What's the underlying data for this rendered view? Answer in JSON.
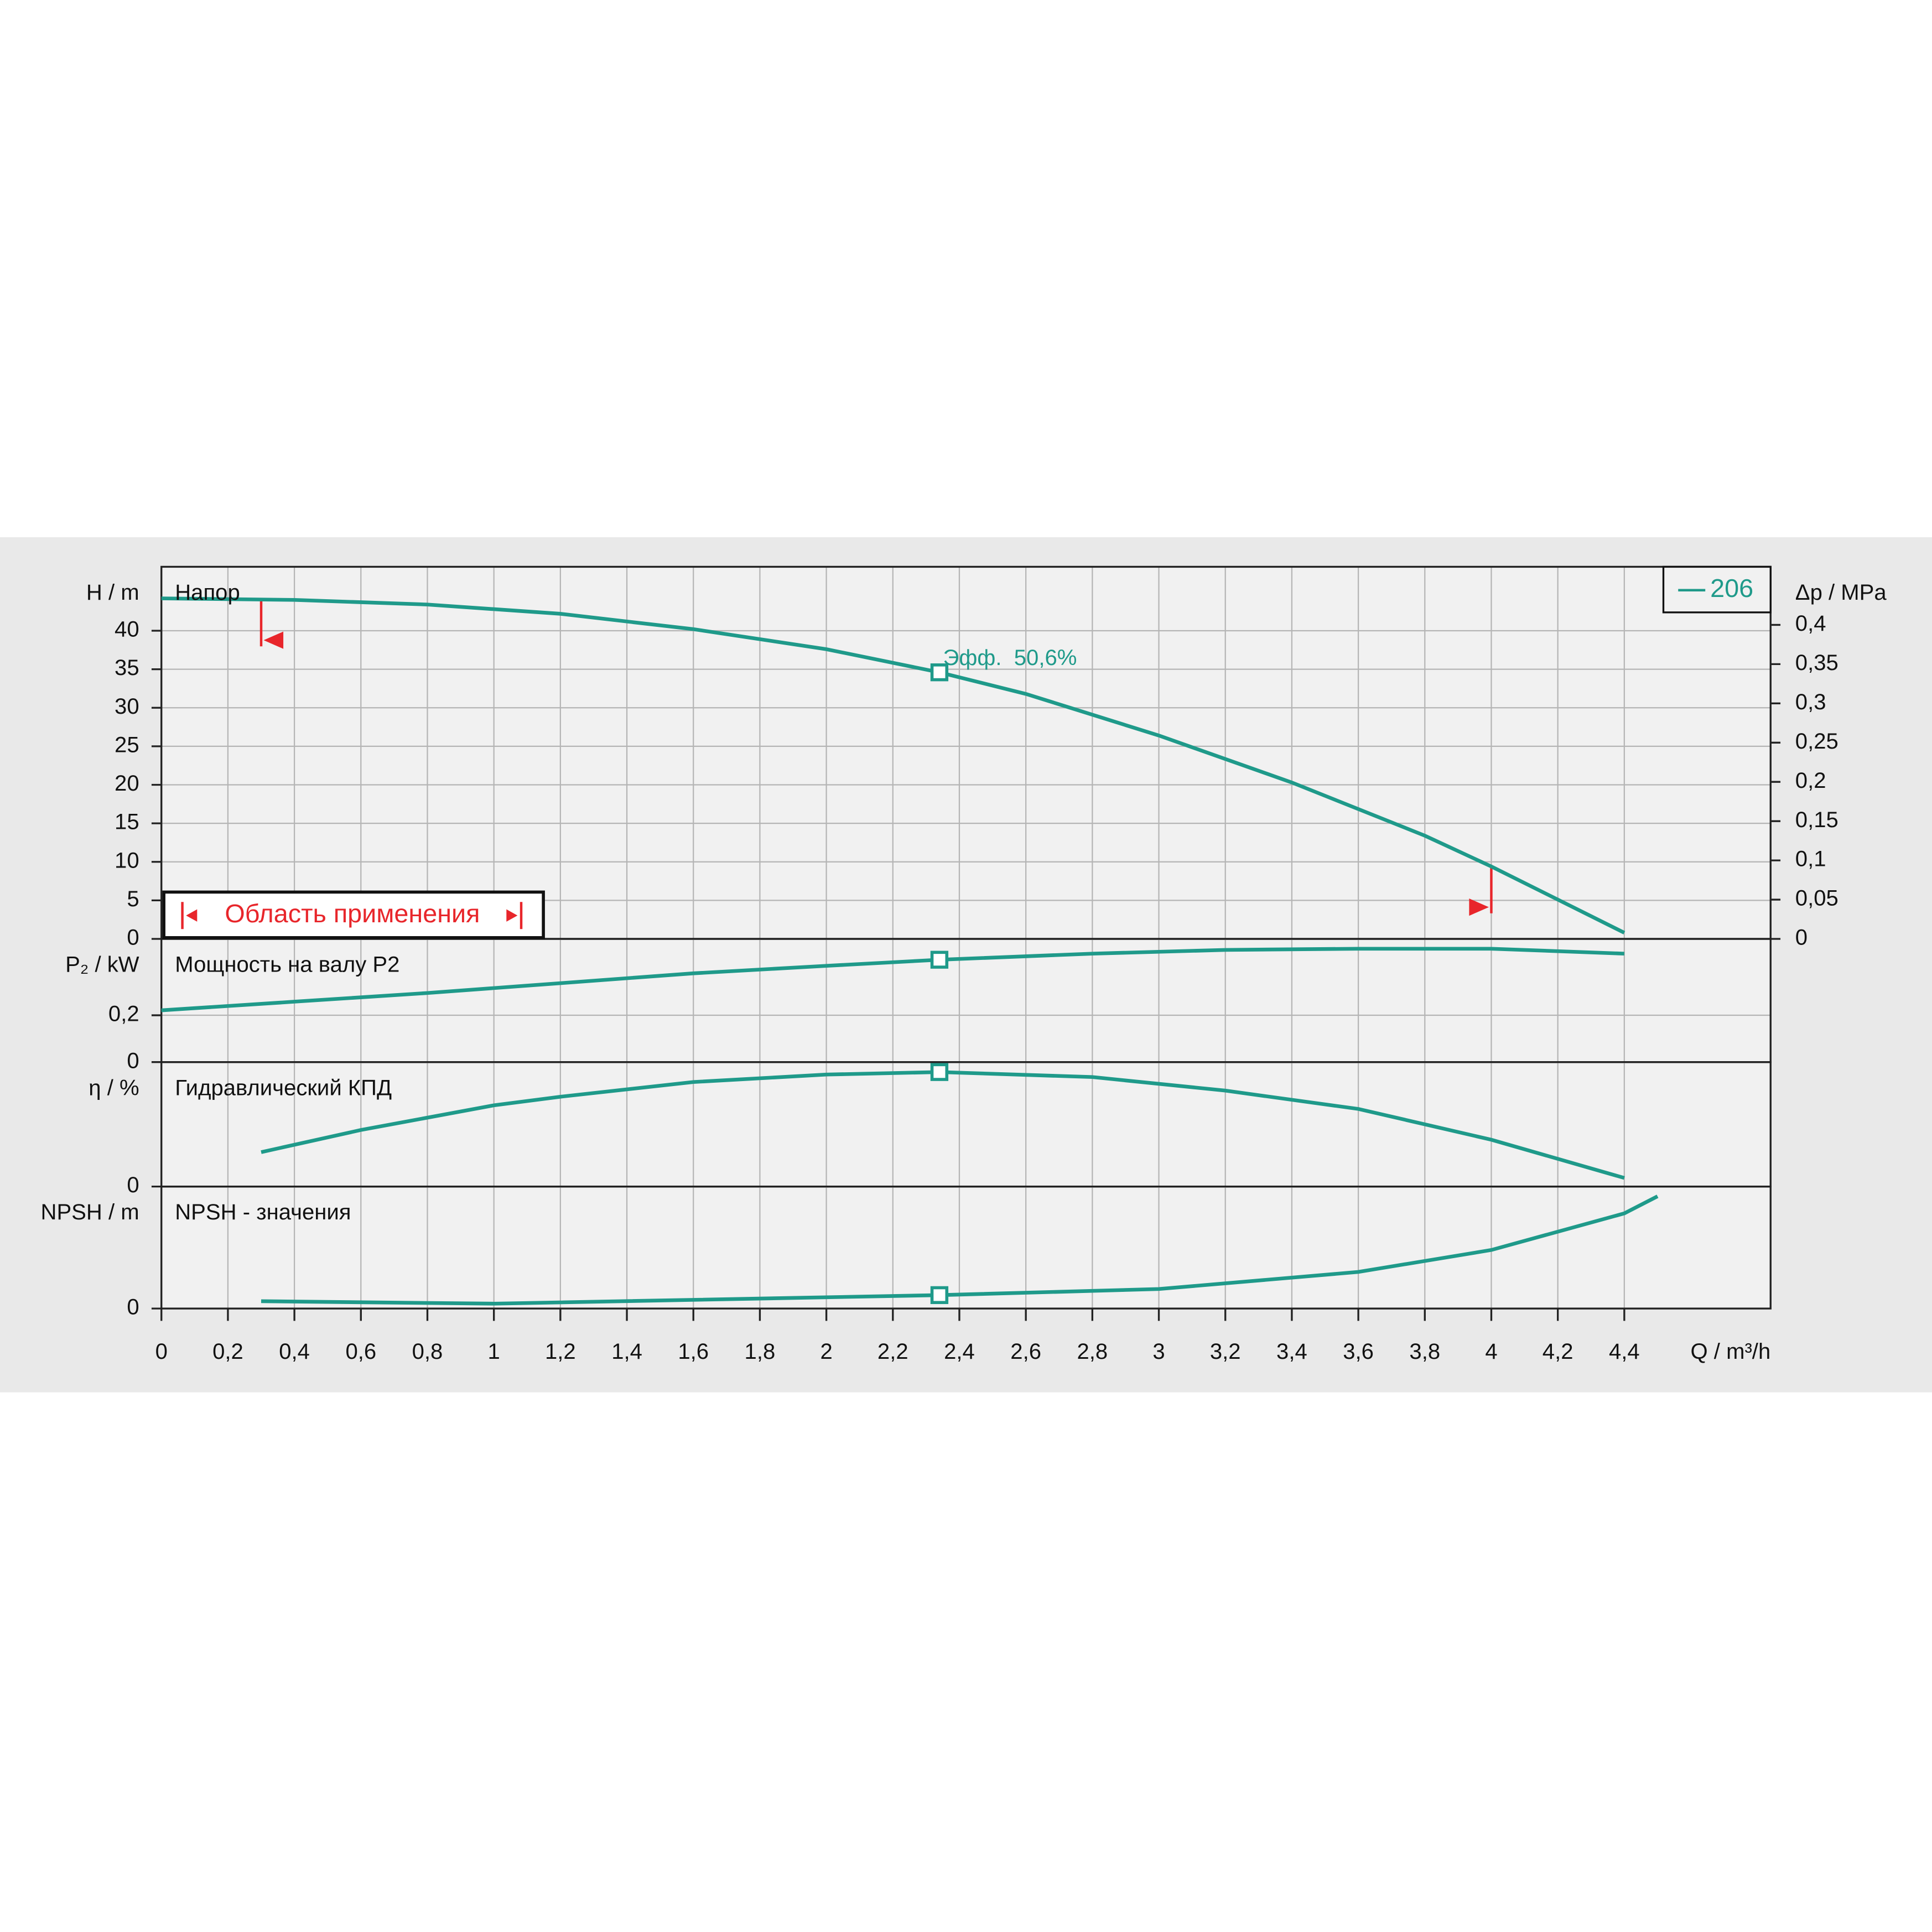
{
  "chart_data": [
    {
      "type": "line",
      "label": "Напор",
      "ylabel": "H / m",
      "y2label": "Δp / MPa",
      "annotation": "Эфф.  50,6%",
      "legend": "206",
      "range_label": "Область применения",
      "range": [
        0.3,
        4.0
      ],
      "duty_point": [
        2.34,
        34.6
      ],
      "xlim": [
        0,
        4.84
      ],
      "ylim": [
        0,
        48.3
      ],
      "yticks": [
        0,
        5,
        10,
        15,
        20,
        25,
        30,
        35,
        40
      ],
      "y2lim": [
        0,
        0.474
      ],
      "y2ticks": [
        0,
        {
          "value": 0.05,
          "label": "0,05"
        },
        {
          "value": 0.1,
          "label": "0,1"
        },
        {
          "value": 0.15,
          "label": "0,15"
        },
        {
          "value": 0.2,
          "label": "0,2"
        },
        {
          "value": 0.25,
          "label": "0,25"
        },
        {
          "value": 0.3,
          "label": "0,3"
        },
        {
          "value": 0.35,
          "label": "0,35"
        },
        {
          "value": 0.4,
          "label": "0,4"
        }
      ],
      "x": [
        0,
        0.4,
        0.8,
        1.2,
        1.6,
        2.0,
        2.34,
        2.6,
        3.0,
        3.4,
        3.8,
        4.0,
        4.4
      ],
      "series": [
        {
          "name": "206",
          "color": "#1f9a8a",
          "values": [
            44.2,
            44,
            43.4,
            42.2,
            40.2,
            37.6,
            34.6,
            31.8,
            26.4,
            20.3,
            13.4,
            9.4,
            0.8
          ]
        }
      ]
    },
    {
      "type": "line",
      "label": "Мощность на валу P2",
      "ylabel": "P₂ / kW",
      "duty_point": [
        2.34,
        0.437
      ],
      "xlim": [
        0,
        4.84
      ],
      "ylim": [
        0,
        0.526
      ],
      "yticks": [
        0,
        {
          "value": 0.2,
          "label": "0,2"
        }
      ],
      "x": [
        0,
        0.4,
        0.8,
        1.2,
        1.6,
        2.0,
        2.34,
        2.8,
        3.2,
        3.6,
        4.0,
        4.4
      ],
      "series": [
        {
          "color": "#1f9a8a",
          "values": [
            0.221,
            0.258,
            0.295,
            0.337,
            0.379,
            0.411,
            0.437,
            0.463,
            0.479,
            0.484,
            0.484,
            0.463
          ]
        }
      ]
    },
    {
      "type": "line",
      "label": "Гидравлический КПД",
      "ylabel": "η / %",
      "duty_point": [
        2.34,
        50.6
      ],
      "xlim": [
        0,
        4.84
      ],
      "ylim": [
        0,
        55
      ],
      "yticks": [
        0
      ],
      "x": [
        0.3,
        0.6,
        1.0,
        1.2,
        1.6,
        2.0,
        2.34,
        2.8,
        3.2,
        3.6,
        4.0,
        4.4
      ],
      "series": [
        {
          "color": "#1f9a8a",
          "values": [
            15.2,
            25,
            35.9,
            39.7,
            46.2,
            49.5,
            50.6,
            48.4,
            42.4,
            34.3,
            20.7,
            3.8
          ]
        }
      ]
    },
    {
      "type": "line",
      "label": "NPSH - значения",
      "ylabel": "NPSH / m",
      "duty_point": [
        2.34,
        1.1
      ],
      "xlim": [
        0,
        4.84
      ],
      "ylim": [
        0,
        10
      ],
      "yticks": [
        0
      ],
      "xticks": [
        0,
        {
          "value": 0.2,
          "label": "0,2"
        },
        {
          "value": 0.4,
          "label": "0,4"
        },
        {
          "value": 0.6,
          "label": "0,6"
        },
        {
          "value": 0.8,
          "label": "0,8"
        },
        1,
        {
          "value": 1.2,
          "label": "1,2"
        },
        {
          "value": 1.4,
          "label": "1,4"
        },
        {
          "value": 1.6,
          "label": "1,6"
        },
        {
          "value": 1.8,
          "label": "1,8"
        },
        2,
        {
          "value": 2.2,
          "label": "2,2"
        },
        {
          "value": 2.4,
          "label": "2,4"
        },
        {
          "value": 2.6,
          "label": "2,6"
        },
        {
          "value": 2.8,
          "label": "2,8"
        },
        3,
        {
          "value": 3.2,
          "label": "3,2"
        },
        {
          "value": 3.4,
          "label": "3,4"
        },
        {
          "value": 3.6,
          "label": "3,6"
        },
        {
          "value": 3.8,
          "label": "3,8"
        },
        4,
        {
          "value": 4.2,
          "label": "4,2"
        },
        {
          "value": 4.4,
          "label": "4,4"
        }
      ],
      "xlabel": "Q / m³/h",
      "x": [
        0.3,
        1.0,
        2.34,
        3.0,
        3.6,
        4.0,
        4.4,
        4.5
      ],
      "series": [
        {
          "color": "#1f9a8a",
          "values": [
            0.6,
            0.4,
            1.1,
            1.6,
            3.0,
            4.8,
            7.8,
            9.2
          ]
        }
      ]
    }
  ]
}
